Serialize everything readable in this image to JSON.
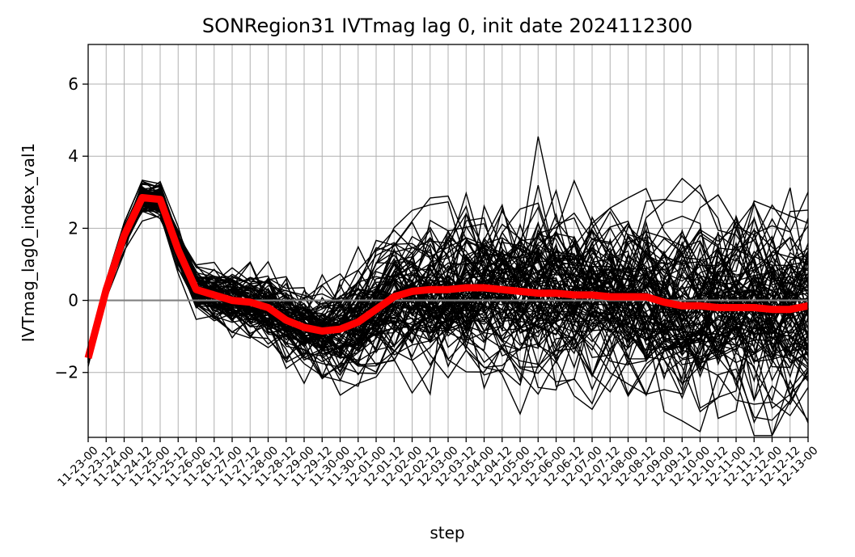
{
  "chart_data": {
    "type": "line",
    "title": "SONRegion31 IVTmag lag 0, init date 2024112300",
    "xlabel": "step",
    "ylabel": "IVTmag_lag0_index_val1",
    "ylim": [
      -3.8,
      7.1
    ],
    "yticks": [
      -2,
      0,
      2,
      4,
      6
    ],
    "ytick_labels": [
      "−2",
      "0",
      "2",
      "4",
      "6"
    ],
    "grid": true,
    "categories": [
      "11-23-00",
      "11-23-12",
      "11-24-00",
      "11-24-12",
      "11-25-00",
      "11-25-12",
      "11-26-00",
      "11-26-12",
      "11-27-00",
      "11-27-12",
      "11-28-00",
      "11-28-12",
      "11-29-00",
      "11-29-12",
      "11-30-00",
      "11-30-12",
      "12-01-00",
      "12-01-12",
      "12-02-00",
      "12-02-12",
      "12-03-00",
      "12-03-12",
      "12-04-00",
      "12-04-12",
      "12-05-00",
      "12-05-12",
      "12-06-00",
      "12-06-12",
      "12-07-00",
      "12-07-12",
      "12-08-00",
      "12-08-12",
      "12-09-00",
      "12-09-12",
      "12-10-00",
      "12-10-12",
      "12-11-00",
      "12-11-12",
      "12-12-00",
      "12-12-12",
      "12-13-00"
    ],
    "zero_line": {
      "y": 0,
      "color": "#808080"
    },
    "ensemble": {
      "color": "#000000",
      "members": 100,
      "seed": 31
    },
    "series": [
      {
        "role": "ensemble-mean",
        "color": "#ff0000",
        "values": [
          -1.6,
          0.3,
          1.8,
          2.85,
          2.8,
          1.4,
          0.3,
          0.15,
          0.0,
          -0.05,
          -0.2,
          -0.55,
          -0.75,
          -0.85,
          -0.8,
          -0.6,
          -0.25,
          0.1,
          0.25,
          0.3,
          0.3,
          0.35,
          0.35,
          0.3,
          0.25,
          0.2,
          0.2,
          0.15,
          0.15,
          0.1,
          0.1,
          0.1,
          -0.05,
          -0.15,
          -0.15,
          -0.2,
          -0.2,
          -0.2,
          -0.25,
          -0.25,
          -0.15
        ]
      }
    ]
  }
}
